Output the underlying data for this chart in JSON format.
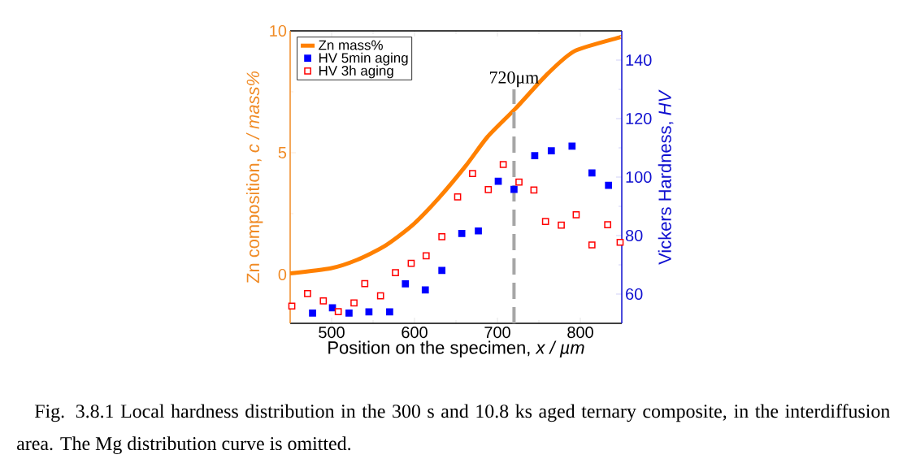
{
  "chart_data": {
    "type": "scatter",
    "xlabel": "Position on the specimen, *x / µm*",
    "ylabel": "Zn composition, *c / mass%*",
    "y2label": "Vickers Hardness, *HV*",
    "xlim": [
      450,
      850
    ],
    "xticks": [
      500,
      600,
      700,
      800
    ],
    "ylim": [
      -2,
      10
    ],
    "yticks": [
      0,
      5,
      10
    ],
    "y2lim": [
      50,
      150
    ],
    "y2ticks": [
      60,
      80,
      100,
      120,
      140
    ],
    "legend": "top left",
    "series": [
      {
        "name": "Zn mass%",
        "type": "line",
        "color": "#ff8000",
        "marker": "none",
        "x": [
          450,
          499,
          531,
          564,
          597,
          629,
          662,
          688,
          722,
          760,
          793,
          847,
          850
        ],
        "values": [
          0.05,
          0.26,
          0.61,
          1.17,
          2.01,
          3.13,
          4.47,
          5.65,
          6.82,
          8.22,
          9.17,
          9.73,
          9.75
        ]
      },
      {
        "name": "HV 5min aging",
        "axis": "y2",
        "color": "#0000ff",
        "marker": "square",
        "x": [
          477,
          501,
          521,
          545,
          570,
          589,
          613,
          633,
          657,
          677,
          701,
          720,
          745,
          765,
          790,
          814,
          834
        ],
        "values": [
          53.5,
          55.3,
          53.5,
          53.9,
          53.9,
          63.5,
          61.4,
          68.1,
          80.7,
          81.6,
          98.6,
          95.8,
          107.3,
          109,
          110.6,
          101.4,
          97.2
        ]
      },
      {
        "name": "HV 3h aging",
        "axis": "y2",
        "color": "#ff0000",
        "marker": "square",
        "x": [
          452,
          471,
          490,
          508,
          527,
          540,
          559,
          577,
          596,
          614,
          633,
          652,
          670,
          689,
          707,
          726,
          744,
          758,
          777,
          795,
          814,
          833,
          848
        ],
        "values": [
          55.9,
          60.2,
          57.7,
          54.0,
          57.0,
          63.6,
          59.4,
          67.3,
          70.5,
          73.1,
          79.6,
          93.2,
          101.2,
          95.7,
          104.3,
          98.3,
          95.6,
          84.8,
          83.6,
          87.1,
          76.8,
          83.7,
          77.7
        ]
      }
    ],
    "ref_lines": [
      {
        "axis": "x",
        "value": 720,
        "label": "720μm",
        "color": "#a6a6a6",
        "line_style": "dashed"
      }
    ],
    "annotations": [
      "Fig. 3.8.1 Local hardness distribution in the 300 s and 10.8 ks aged ternary composite, in the interdiffusion area. The Mg distribution curve is omitted."
    ]
  }
}
